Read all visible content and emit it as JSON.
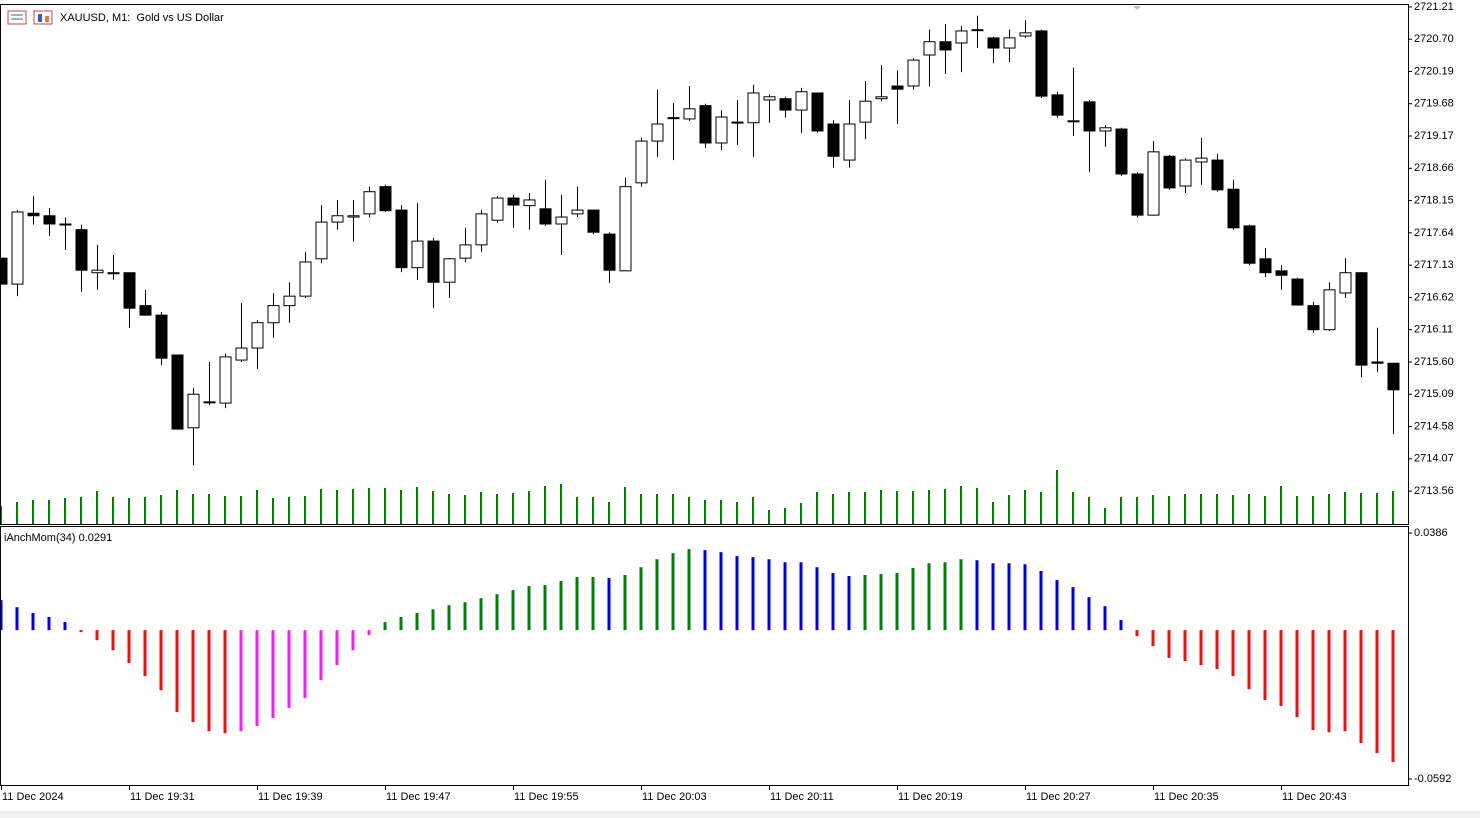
{
  "chart_data": [
    {
      "type": "candlestick",
      "title": "XAUUSD, M1:  Gold vs US Dollar",
      "categories": [
        "11 Dec 2024",
        null,
        null,
        null,
        null,
        null,
        null,
        null,
        "11 Dec 19:31",
        null,
        null,
        null,
        null,
        null,
        null,
        null,
        "11 Dec 19:39",
        null,
        null,
        null,
        null,
        null,
        null,
        null,
        "11 Dec 19:47",
        null,
        null,
        null,
        null,
        null,
        null,
        null,
        "11 Dec 19:55",
        null,
        null,
        null,
        null,
        null,
        null,
        null,
        "11 Dec 20:03",
        null,
        null,
        null,
        null,
        null,
        null,
        null,
        "11 Dec 20:11",
        null,
        null,
        null,
        null,
        null,
        null,
        null,
        "11 Dec 20:19",
        null,
        null,
        null,
        null,
        null,
        null,
        null,
        "11 Dec 20:27",
        null,
        null,
        null,
        null,
        null,
        null,
        null,
        "11 Dec 20:35",
        null,
        null,
        null,
        null,
        null,
        null,
        null,
        "11 Dec 20:43",
        null,
        null,
        null,
        null,
        null,
        null,
        null
      ],
      "open": [
        2717.24,
        2716.83,
        2717.95,
        2717.91,
        2717.78,
        2717.69,
        2717.01,
        2717.01,
        2717.01,
        2716.49,
        2716.34,
        2715.71,
        2714.56,
        2714.97,
        2714.95,
        2715.63,
        2715.82,
        2716.22,
        2716.49,
        2716.64,
        2717.23,
        2717.81,
        2717.89,
        2717.94,
        2718.37,
        2718.0,
        2717.09,
        2717.51,
        2716.86,
        2717.24,
        2717.45,
        2717.84,
        2718.19,
        2718.07,
        2718.02,
        2717.78,
        2717.94,
        2718.0,
        2717.62,
        2717.04,
        2718.43,
        2719.09,
        2719.46,
        2719.44,
        2719.65,
        2719.06,
        2719.38,
        2719.38,
        2719.74,
        2719.76,
        2719.58,
        2719.85,
        2719.36,
        2718.79,
        2719.39,
        2719.76,
        2719.96,
        2719.96,
        2720.45,
        2720.66,
        2720.64,
        2720.85,
        2720.72,
        2720.56,
        2720.75,
        2720.83,
        2719.82,
        2719.41,
        2719.71,
        2719.25,
        2719.28,
        2718.57,
        2717.92,
        2718.85,
        2718.38,
        2718.76,
        2718.79,
        2718.33,
        2717.75,
        2717.23,
        2717.04,
        2716.91,
        2716.49,
        2716.11,
        2716.69,
        2717.01,
        2715.6,
        2715.58
      ],
      "high": [
        2717.24,
        2718.0,
        2718.22,
        2718.03,
        2717.88,
        2717.77,
        2717.45,
        2717.29,
        2717.01,
        2716.74,
        2716.39,
        2715.71,
        2715.19,
        2715.6,
        2715.73,
        2716.53,
        2716.26,
        2716.69,
        2716.86,
        2717.34,
        2718.08,
        2718.16,
        2718.16,
        2718.37,
        2718.4,
        2718.08,
        2718.11,
        2717.56,
        2717.24,
        2717.72,
        2718.0,
        2718.22,
        2718.24,
        2718.27,
        2718.48,
        2718.24,
        2718.37,
        2718.0,
        2717.65,
        2718.51,
        2719.14,
        2719.9,
        2719.69,
        2719.96,
        2719.68,
        2719.58,
        2719.74,
        2719.98,
        2719.83,
        2719.79,
        2719.93,
        2719.85,
        2719.42,
        2719.74,
        2720.04,
        2720.29,
        2720.21,
        2720.4,
        2720.85,
        2720.94,
        2720.91,
        2721.07,
        2720.74,
        2720.85,
        2721.0,
        2720.85,
        2719.87,
        2720.25,
        2719.74,
        2719.34,
        2719.3,
        2718.6,
        2719.09,
        2718.87,
        2718.82,
        2719.14,
        2718.89,
        2718.48,
        2717.77,
        2717.4,
        2717.13,
        2716.93,
        2716.55,
        2716.86,
        2717.24,
        2717.02,
        2716.14,
        2715.58
      ],
      "low": [
        2716.83,
        2716.64,
        2717.77,
        2717.59,
        2717.37,
        2716.71,
        2716.74,
        2716.9,
        2716.14,
        2716.33,
        2715.55,
        2714.53,
        2713.97,
        2714.92,
        2714.87,
        2715.6,
        2715.49,
        2715.98,
        2716.22,
        2716.61,
        2717.16,
        2717.69,
        2717.5,
        2717.88,
        2717.97,
        2717.02,
        2716.9,
        2716.45,
        2716.61,
        2717.18,
        2717.34,
        2717.8,
        2717.72,
        2717.69,
        2717.75,
        2717.29,
        2717.89,
        2717.62,
        2716.85,
        2717.04,
        2718.37,
        2718.84,
        2718.79,
        2719.41,
        2718.98,
        2718.95,
        2719.03,
        2718.84,
        2719.38,
        2719.46,
        2719.22,
        2719.22,
        2718.67,
        2718.67,
        2719.12,
        2719.72,
        2719.36,
        2719.9,
        2719.95,
        2720.15,
        2720.18,
        2720.56,
        2720.32,
        2720.34,
        2720.72,
        2719.77,
        2719.46,
        2719.17,
        2718.6,
        2719.0,
        2718.54,
        2717.88,
        2717.91,
        2718.32,
        2718.27,
        2718.4,
        2718.29,
        2717.69,
        2717.13,
        2716.94,
        2716.74,
        2716.49,
        2716.06,
        2716.09,
        2716.61,
        2715.36,
        2715.44,
        2714.46
      ],
      "close": [
        2716.83,
        2717.97,
        2717.91,
        2717.78,
        2717.78,
        2717.05,
        2717.05,
        2717.01,
        2716.45,
        2716.34,
        2715.66,
        2714.54,
        2715.09,
        2714.97,
        2715.68,
        2715.82,
        2716.22,
        2716.49,
        2716.64,
        2717.18,
        2717.81,
        2717.91,
        2717.91,
        2718.29,
        2717.99,
        2717.09,
        2717.51,
        2716.86,
        2717.23,
        2717.45,
        2717.94,
        2718.19,
        2718.08,
        2718.16,
        2717.78,
        2717.89,
        2718.0,
        2717.65,
        2717.05,
        2718.37,
        2719.09,
        2719.36,
        2719.46,
        2719.6,
        2719.06,
        2719.47,
        2719.39,
        2719.85,
        2719.79,
        2719.58,
        2719.87,
        2719.25,
        2718.85,
        2719.36,
        2719.72,
        2719.79,
        2719.91,
        2720.37,
        2720.66,
        2720.53,
        2720.83,
        2720.85,
        2720.56,
        2720.72,
        2720.8,
        2719.8,
        2719.5,
        2719.41,
        2719.25,
        2719.3,
        2718.57,
        2717.92,
        2718.92,
        2718.35,
        2718.79,
        2718.82,
        2718.32,
        2717.72,
        2717.16,
        2717.01,
        2716.97,
        2716.5,
        2716.11,
        2716.74,
        2717.01,
        2715.55,
        2715.58,
        2715.16
      ],
      "volume": [
        18,
        22,
        24,
        24,
        26,
        27,
        33,
        27,
        26,
        27,
        29,
        34,
        30,
        30,
        28,
        28,
        34,
        26,
        27,
        28,
        35,
        34,
        35,
        36,
        36,
        34,
        37,
        33,
        30,
        29,
        32,
        30,
        31,
        33,
        38,
        40,
        27,
        27,
        22,
        37,
        30,
        30,
        30,
        27,
        24,
        24,
        22,
        27,
        14,
        16,
        21,
        32,
        30,
        32,
        32,
        34,
        33,
        33,
        34,
        35,
        38,
        36,
        22,
        29,
        34,
        32,
        54,
        32,
        27,
        16,
        27,
        27,
        29,
        28,
        30,
        30,
        30,
        29,
        30,
        28,
        38,
        28,
        28,
        30,
        32,
        31,
        31,
        33
      ],
      "up_color": "#ffffff",
      "down_color": "#000000",
      "volume_color": "#008000",
      "ylim": [
        2713.04,
        2721.24
      ],
      "yticks": [
        2721.21,
        {
          "value": 2720.7,
          "label": "2720.70"
        },
        2720.19,
        2719.68,
        2719.17,
        2718.66,
        2718.15,
        2717.64,
        2717.13,
        2716.62,
        2716.11,
        {
          "value": 2715.6,
          "label": "2715.60"
        },
        2715.09,
        2714.58,
        2714.07,
        2713.56
      ]
    },
    {
      "type": "bar",
      "title": "iAnchMom(34) 0.0291",
      "values": [
        0.0119,
        0.0091,
        0.0068,
        0.0052,
        0.0032,
        -0.0008,
        -0.004,
        -0.008,
        -0.0131,
        -0.0183,
        -0.0239,
        -0.0326,
        -0.0366,
        -0.0402,
        -0.041,
        -0.0402,
        -0.0382,
        -0.035,
        -0.031,
        -0.027,
        -0.0199,
        -0.0139,
        -0.008,
        -0.002,
        0.0032,
        0.0052,
        0.0068,
        0.0083,
        0.0099,
        0.0111,
        0.0127,
        0.0143,
        0.0159,
        0.0175,
        0.0179,
        0.0195,
        0.0211,
        0.0211,
        0.0207,
        0.0219,
        0.025,
        0.0282,
        0.0306,
        0.0322,
        0.0318,
        0.031,
        0.0294,
        0.029,
        0.0282,
        0.027,
        0.027,
        0.025,
        0.0227,
        0.0215,
        0.0219,
        0.0223,
        0.0227,
        0.0247,
        0.0266,
        0.027,
        0.0282,
        0.0278,
        0.0266,
        0.0266,
        0.0262,
        0.0235,
        0.0199,
        0.0171,
        0.0131,
        0.0095,
        0.004,
        -0.0024,
        -0.0064,
        -0.0111,
        -0.0123,
        -0.0139,
        -0.0155,
        -0.0183,
        -0.0235,
        -0.0278,
        -0.0302,
        -0.0346,
        -0.0398,
        -0.0406,
        -0.0402,
        -0.0449,
        -0.0489,
        -0.0525
      ],
      "colors": [
        "#0000dd",
        "#0000dd",
        "#0000dd",
        "#0000dd",
        "#0000dd",
        "#e81010",
        "#e81010",
        "#e81010",
        "#e81010",
        "#e81010",
        "#e81010",
        "#e81010",
        "#e81010",
        "#e81010",
        "#e81010",
        "#ee22ee",
        "#ee22ee",
        "#ee22ee",
        "#ee22ee",
        "#ee22ee",
        "#ee22ee",
        "#ee22ee",
        "#ee22ee",
        "#ee22ee",
        "#008000",
        "#008000",
        "#008000",
        "#008000",
        "#008000",
        "#008000",
        "#008000",
        "#008000",
        "#008000",
        "#008000",
        "#008000",
        "#008000",
        "#008000",
        "#008000",
        "#0000dd",
        "#008000",
        "#008000",
        "#008000",
        "#008000",
        "#008000",
        "#0000dd",
        "#0000dd",
        "#0000dd",
        "#0000dd",
        "#0000dd",
        "#0000dd",
        "#0000dd",
        "#0000dd",
        "#0000dd",
        "#0000dd",
        "#008000",
        "#008000",
        "#008000",
        "#008000",
        "#008000",
        "#008000",
        "#008000",
        "#0000dd",
        "#0000dd",
        "#0000dd",
        "#0000dd",
        "#0000dd",
        "#0000dd",
        "#0000dd",
        "#0000dd",
        "#0000dd",
        "#0000dd",
        "#e81010",
        "#e81010",
        "#e81010",
        "#e81010",
        "#e81010",
        "#e81010",
        "#e81010",
        "#e81010",
        "#e81010",
        "#e81010",
        "#e81010",
        "#e81010",
        "#e81010",
        "#e81010",
        "#e81010",
        "#e81010",
        "#e81010"
      ],
      "ylim": [
        -0.0616,
        0.0414
      ],
      "yticks": [
        0.0386,
        -0.0592
      ]
    }
  ]
}
